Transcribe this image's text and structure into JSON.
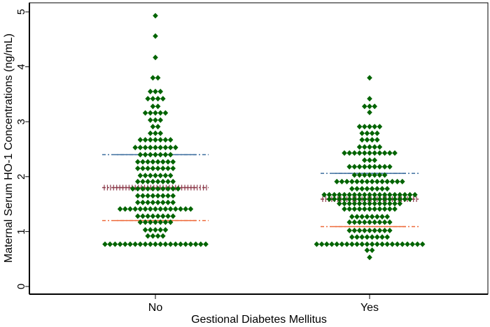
{
  "chart_data": {
    "type": "scatter",
    "subtype": "dot-plot",
    "title": "",
    "xlabel": "Gestional Diabetes Mellitus",
    "ylabel": "Maternal Serum HO-1 Concentrations (ng/mL)",
    "ylim": [
      0,
      5
    ],
    "yticks": [
      "0",
      "1",
      "2",
      "3",
      "4",
      "5"
    ],
    "categories": [
      "No",
      "Yes"
    ],
    "grid": false,
    "legend": "none",
    "colors": {
      "points": "#006400",
      "upper_line": "#3c6e9e",
      "middle_line": "#8b3a4a",
      "lower_line": "#ee6a3a"
    },
    "groups": [
      {
        "name": "No",
        "reference_lines": {
          "upper": 2.4,
          "middle": 1.8,
          "lower": 1.2
        },
        "rows": [
          {
            "y": 4.93,
            "count": 1
          },
          {
            "y": 4.56,
            "count": 1
          },
          {
            "y": 4.17,
            "count": 1
          },
          {
            "y": 3.8,
            "count": 2
          },
          {
            "y": 3.55,
            "count": 3
          },
          {
            "y": 3.42,
            "count": 4
          },
          {
            "y": 3.28,
            "count": 2
          },
          {
            "y": 3.16,
            "count": 5
          },
          {
            "y": 3.03,
            "count": 3
          },
          {
            "y": 2.91,
            "count": 2
          },
          {
            "y": 2.79,
            "count": 3
          },
          {
            "y": 2.67,
            "count": 7
          },
          {
            "y": 2.53,
            "count": 9
          },
          {
            "y": 2.4,
            "count": 7
          },
          {
            "y": 2.27,
            "count": 8
          },
          {
            "y": 2.15,
            "count": 8
          },
          {
            "y": 2.02,
            "count": 7
          },
          {
            "y": 1.91,
            "count": 8
          },
          {
            "y": 1.78,
            "count": 10
          },
          {
            "y": 1.65,
            "count": 8
          },
          {
            "y": 1.53,
            "count": 8
          },
          {
            "y": 1.41,
            "count": 15
          },
          {
            "y": 1.28,
            "count": 8
          },
          {
            "y": 1.17,
            "count": 7
          },
          {
            "y": 1.03,
            "count": 5
          },
          {
            "y": 0.92,
            "count": 4
          },
          {
            "y": 0.77,
            "count": 21
          }
        ]
      },
      {
        "name": "Yes",
        "reference_lines": {
          "upper": 2.06,
          "middle": 1.59,
          "lower": 1.09
        },
        "rows": [
          {
            "y": 3.8,
            "count": 1
          },
          {
            "y": 3.42,
            "count": 1
          },
          {
            "y": 3.28,
            "count": 3
          },
          {
            "y": 3.17,
            "count": 1
          },
          {
            "y": 2.91,
            "count": 5
          },
          {
            "y": 2.79,
            "count": 4
          },
          {
            "y": 2.67,
            "count": 4
          },
          {
            "y": 2.54,
            "count": 5
          },
          {
            "y": 2.43,
            "count": 11
          },
          {
            "y": 2.3,
            "count": 3
          },
          {
            "y": 2.18,
            "count": 9
          },
          {
            "y": 2.03,
            "count": 7
          },
          {
            "y": 1.91,
            "count": 14
          },
          {
            "y": 1.78,
            "count": 8
          },
          {
            "y": 1.67,
            "count": 19
          },
          {
            "y": 1.59,
            "count": 17
          },
          {
            "y": 1.51,
            "count": 13
          },
          {
            "y": 1.41,
            "count": 11
          },
          {
            "y": 1.27,
            "count": 8
          },
          {
            "y": 1.17,
            "count": 9
          },
          {
            "y": 1.02,
            "count": 9
          },
          {
            "y": 0.9,
            "count": 8
          },
          {
            "y": 0.77,
            "count": 22
          },
          {
            "y": 0.66,
            "count": 2
          },
          {
            "y": 0.53,
            "count": 1
          }
        ]
      }
    ]
  }
}
